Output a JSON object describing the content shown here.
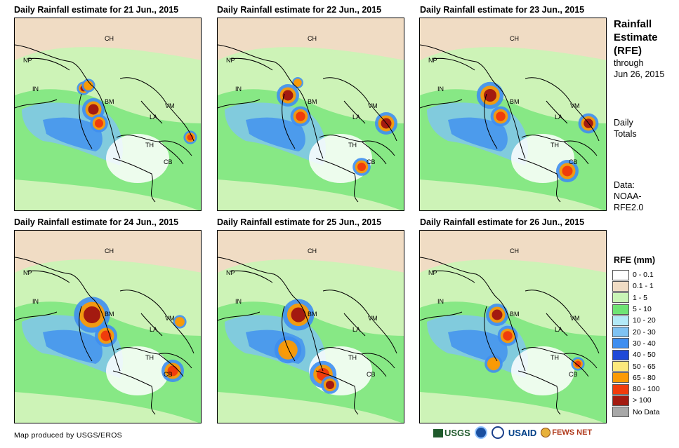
{
  "panels": [
    {
      "title": "Daily Rainfall estimate for 21 Jun., 2015"
    },
    {
      "title": "Daily Rainfall estimate for 22 Jun., 2015"
    },
    {
      "title": "Daily Rainfall estimate for 23 Jun., 2015"
    },
    {
      "title": "Daily Rainfall estimate for 24 Jun., 2015"
    },
    {
      "title": "Daily Rainfall estimate for 25 Jun., 2015"
    },
    {
      "title": "Daily Rainfall estimate for 26 Jun., 2015"
    }
  ],
  "country_labels": {
    "ch": "CH",
    "np": "NP",
    "in": "IN",
    "bm": "BM",
    "la": "LA",
    "vm": "VM",
    "th": "TH",
    "cb": "CB"
  },
  "side": {
    "title_1": "Rainfall",
    "title_2": "Estimate",
    "title_3": "(RFE)",
    "through": "through",
    "date": "Jun 26, 2015",
    "daily": "Daily",
    "totals": "Totals",
    "data_label": "Data:",
    "data_src_1": "NOAA-",
    "data_src_2": "RFE2.0"
  },
  "legend": {
    "title": "RFE (mm)",
    "items": [
      {
        "label": "0 - 0.1",
        "color": "#ffffff"
      },
      {
        "label": "0.1 - 1",
        "color": "#f0dcc4"
      },
      {
        "label": "1 - 5",
        "color": "#c9f5b6"
      },
      {
        "label": "5 - 10",
        "color": "#6fe474"
      },
      {
        "label": "10 - 20",
        "color": "#b3eaf7"
      },
      {
        "label": "20 - 30",
        "color": "#7fc3f3"
      },
      {
        "label": "30 - 40",
        "color": "#3f8ef0"
      },
      {
        "label": "40 - 50",
        "color": "#1f49d8"
      },
      {
        "label": "50 - 65",
        "color": "#fde97c"
      },
      {
        "label": "65 - 80",
        "color": "#fa9a05"
      },
      {
        "label": "80 - 100",
        "color": "#f03c0c"
      },
      {
        "label": "> 100",
        "color": "#a31a10"
      },
      {
        "label": "No Data",
        "color": "#a8a8a8"
      }
    ]
  },
  "footer": "Map produced by USGS/EROS",
  "logos": {
    "usgs": "USGS",
    "usaid": "USAID",
    "fewsnet": "FEWS NET"
  }
}
